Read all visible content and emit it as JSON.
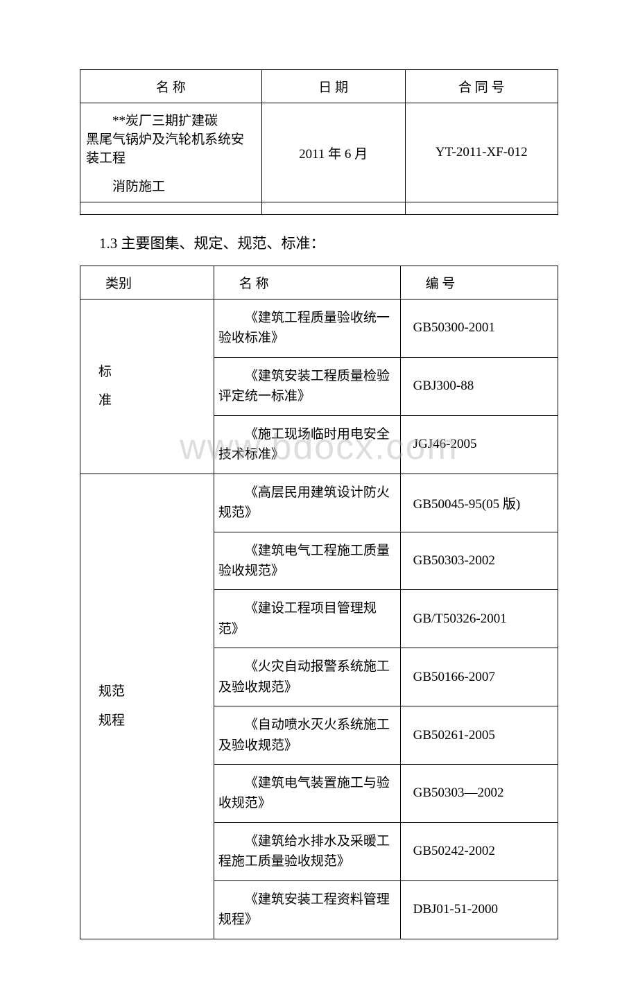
{
  "table1": {
    "headers": [
      "名 称",
      "日 期",
      "合 同 号"
    ],
    "row": {
      "name_part1": "**炭厂三期扩建碳",
      "name_part2": "黑尾气锅炉及汽轮机系统安装工程",
      "name_part3": "消防施工",
      "date": "2011 年 6 月",
      "contract": "YT-2011-XF-012"
    }
  },
  "section_title": "1.3 主要图集、规定、规范、标准：",
  "table2": {
    "headers": [
      "类别",
      "名 称",
      "编 号"
    ],
    "groups": [
      {
        "category_lines": [
          "标",
          "准"
        ],
        "rows": [
          {
            "name": "《建筑工程质量验收统一验收标准》",
            "code": "GB50300-2001"
          },
          {
            "name": "《建筑安装工程质量检验评定统一标准》",
            "code": "GBJ300-88"
          },
          {
            "name": "《施工现场临时用电安全技术标准》",
            "code": "JGJ46-2005"
          }
        ]
      },
      {
        "category_lines": [
          "规范",
          "规程"
        ],
        "rows": [
          {
            "name": "《高层民用建筑设计防火规范》",
            "code": "GB50045-95(05 版)"
          },
          {
            "name": "《建筑电气工程施工质量验收规范》",
            "code": "GB50303-2002"
          },
          {
            "name": "《建设工程项目管理规范》",
            "code": "GB/T50326-2001"
          },
          {
            "name": "《火灾自动报警系统施工及验收规范》",
            "code": "GB50166-2007"
          },
          {
            "name": "《自动喷水灭火系统施工及验收规范》",
            "code": "GB50261-2005"
          },
          {
            "name": "《建筑电气装置施工与验收规范》",
            "code": "GB50303—2002"
          },
          {
            "name": "《建筑给水排水及采暖工程施工质量验收规范》",
            "code": "GB50242-2002"
          },
          {
            "name": "《建筑安装工程资料管理规程》",
            "code": "DBJ01-51-2000"
          }
        ]
      }
    ]
  },
  "watermark": "www.bdocx.com"
}
